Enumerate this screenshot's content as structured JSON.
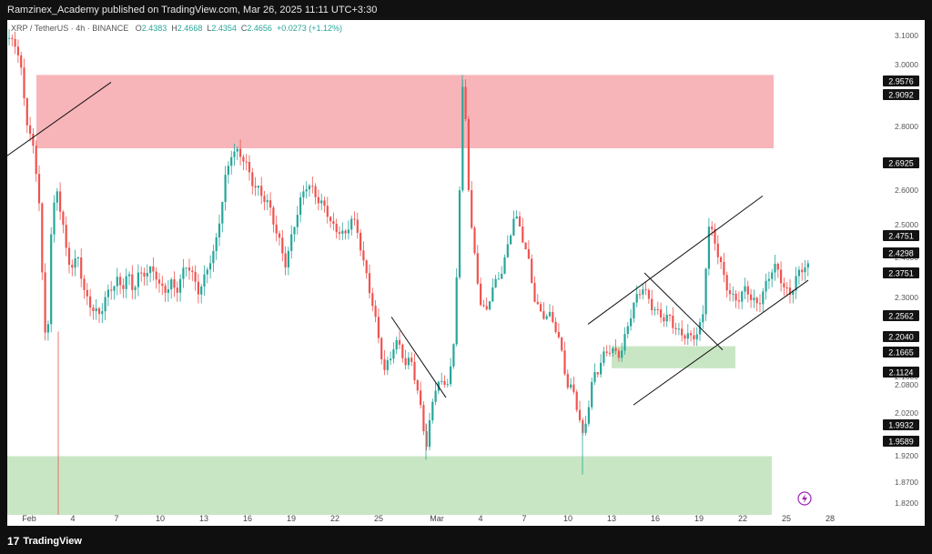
{
  "header": {
    "publish_line": "Ramzinex_Academy published on TradingView.com, Mar 26, 2025 11:11 UTC+3:30"
  },
  "symbol": {
    "name": "XRP / TetherUS · 4h · BINANCE",
    "o_label": "O",
    "o_value": "2.4383",
    "h_label": "H",
    "h_value": "2.4668",
    "l_label": "L",
    "l_value": "2.4354",
    "c_label": "C",
    "c_value": "2.4656",
    "change": "+0.0273 (+1.12%)"
  },
  "footer": {
    "brand": "TradingView",
    "brand_mark": "17"
  },
  "icons": {
    "flash": "flash-icon"
  },
  "colors": {
    "up": "#26a69a",
    "down": "#ef5350",
    "supply_zone": "#f7b5b9",
    "demand_zone": "#c9e6c4"
  },
  "chart_data": {
    "type": "candlestick",
    "title": "",
    "xlabel": "",
    "ylabel": "",
    "ylim": [
      1.8,
      3.13
    ],
    "x_tick_labels": [
      "Feb",
      "4",
      "7",
      "10",
      "13",
      "16",
      "19",
      "22",
      "25",
      "Mar",
      "4",
      "7",
      "10",
      "13",
      "16",
      "19",
      "22",
      "25",
      "28"
    ],
    "y_tick_labels": [
      "3.1000",
      "3.0000",
      "2.8000",
      "2.6000",
      "2.5000",
      "2.4000",
      "2.3000",
      "2.2000",
      "2.1000",
      "2.0800",
      "2.0200",
      "1.9800",
      "1.9200",
      "1.8700",
      "1.8200"
    ],
    "price_tags": [
      "2.9576",
      "2.9092",
      "2.6925",
      "2.4751",
      "2.4298",
      "2.3751",
      "2.2562",
      "2.2040",
      "2.1665",
      "2.1124",
      "1.9932",
      "1.9589"
    ],
    "zones": [
      {
        "name": "supply",
        "top": 3.0,
        "bottom": 2.8
      },
      {
        "name": "demand-small",
        "top": 2.26,
        "bottom": 2.2
      },
      {
        "name": "demand-large",
        "top": 1.96,
        "bottom": 1.8
      }
    ],
    "path": [
      [
        0,
        3.1
      ],
      [
        8,
        3.08
      ],
      [
        15,
        3.0
      ],
      [
        22,
        2.88
      ],
      [
        30,
        2.8
      ],
      [
        36,
        2.62
      ],
      [
        40,
        2.3
      ],
      [
        44,
        2.25
      ],
      [
        48,
        2.55
      ],
      [
        54,
        2.72
      ],
      [
        60,
        2.62
      ],
      [
        66,
        2.5
      ],
      [
        72,
        2.45
      ],
      [
        78,
        2.5
      ],
      [
        84,
        2.42
      ],
      [
        90,
        2.4
      ],
      [
        96,
        2.35
      ],
      [
        102,
        2.33
      ],
      [
        108,
        2.38
      ],
      [
        114,
        2.43
      ],
      [
        120,
        2.46
      ],
      [
        126,
        2.42
      ],
      [
        132,
        2.44
      ],
      [
        138,
        2.4
      ],
      [
        144,
        2.46
      ],
      [
        150,
        2.48
      ],
      [
        156,
        2.47
      ],
      [
        162,
        2.45
      ],
      [
        168,
        2.4
      ],
      [
        174,
        2.42
      ],
      [
        180,
        2.45
      ],
      [
        186,
        2.42
      ],
      [
        192,
        2.44
      ],
      [
        198,
        2.47
      ],
      [
        204,
        2.45
      ],
      [
        210,
        2.43
      ],
      [
        216,
        2.45
      ],
      [
        222,
        2.48
      ],
      [
        228,
        2.5
      ],
      [
        234,
        2.62
      ],
      [
        240,
        2.74
      ],
      [
        246,
        2.8
      ],
      [
        252,
        2.78
      ],
      [
        258,
        2.76
      ],
      [
        264,
        2.74
      ],
      [
        270,
        2.72
      ],
      [
        276,
        2.7
      ],
      [
        282,
        2.66
      ],
      [
        288,
        2.62
      ],
      [
        294,
        2.58
      ],
      [
        300,
        2.55
      ],
      [
        306,
        2.5
      ],
      [
        312,
        2.55
      ],
      [
        318,
        2.6
      ],
      [
        324,
        2.66
      ],
      [
        330,
        2.72
      ],
      [
        336,
        2.7
      ],
      [
        342,
        2.66
      ],
      [
        348,
        2.62
      ],
      [
        354,
        2.6
      ],
      [
        360,
        2.58
      ],
      [
        366,
        2.6
      ],
      [
        372,
        2.56
      ],
      [
        378,
        2.6
      ],
      [
        384,
        2.56
      ],
      [
        390,
        2.52
      ],
      [
        396,
        2.45
      ],
      [
        402,
        2.38
      ],
      [
        408,
        2.26
      ],
      [
        414,
        2.18
      ],
      [
        420,
        2.22
      ],
      [
        426,
        2.3
      ],
      [
        432,
        2.26
      ],
      [
        438,
        2.2
      ],
      [
        444,
        2.2
      ],
      [
        450,
        2.15
      ],
      [
        456,
        2.08
      ],
      [
        460,
        2.0
      ],
      [
        466,
        2.08
      ],
      [
        472,
        2.15
      ],
      [
        478,
        2.14
      ],
      [
        484,
        2.18
      ],
      [
        490,
        2.25
      ],
      [
        496,
        2.6
      ],
      [
        500,
        2.95
      ],
      [
        504,
        2.85
      ],
      [
        508,
        2.62
      ],
      [
        514,
        2.5
      ],
      [
        520,
        2.4
      ],
      [
        526,
        2.35
      ],
      [
        532,
        2.4
      ],
      [
        538,
        2.42
      ],
      [
        544,
        2.48
      ],
      [
        550,
        2.55
      ],
      [
        556,
        2.62
      ],
      [
        562,
        2.58
      ],
      [
        568,
        2.52
      ],
      [
        574,
        2.48
      ],
      [
        580,
        2.4
      ],
      [
        586,
        2.36
      ],
      [
        592,
        2.33
      ],
      [
        598,
        2.32
      ],
      [
        604,
        2.3
      ],
      [
        610,
        2.25
      ],
      [
        616,
        2.16
      ],
      [
        622,
        2.13
      ],
      [
        628,
        2.05
      ],
      [
        632,
        2.0
      ],
      [
        638,
        2.1
      ],
      [
        644,
        2.2
      ],
      [
        650,
        2.2
      ],
      [
        656,
        2.22
      ],
      [
        662,
        2.24
      ],
      [
        668,
        2.25
      ],
      [
        674,
        2.26
      ],
      [
        680,
        2.3
      ],
      [
        686,
        2.34
      ],
      [
        692,
        2.38
      ],
      [
        698,
        2.43
      ],
      [
        704,
        2.41
      ],
      [
        710,
        2.37
      ],
      [
        716,
        2.33
      ],
      [
        722,
        2.32
      ],
      [
        728,
        2.34
      ],
      [
        734,
        2.33
      ],
      [
        740,
        2.3
      ],
      [
        746,
        2.28
      ],
      [
        752,
        2.26
      ],
      [
        758,
        2.3
      ],
      [
        764,
        2.35
      ],
      [
        770,
        2.6
      ],
      [
        776,
        2.55
      ],
      [
        782,
        2.48
      ],
      [
        788,
        2.44
      ],
      [
        794,
        2.42
      ],
      [
        800,
        2.4
      ],
      [
        806,
        2.39
      ],
      [
        812,
        2.4
      ],
      [
        818,
        2.38
      ],
      [
        824,
        2.39
      ],
      [
        830,
        2.42
      ],
      [
        836,
        2.44
      ],
      [
        842,
        2.46
      ],
      [
        848,
        2.45
      ],
      [
        854,
        2.43
      ],
      [
        860,
        2.42
      ],
      [
        866,
        2.44
      ],
      [
        872,
        2.45
      ],
      [
        878,
        2.47
      ]
    ]
  }
}
